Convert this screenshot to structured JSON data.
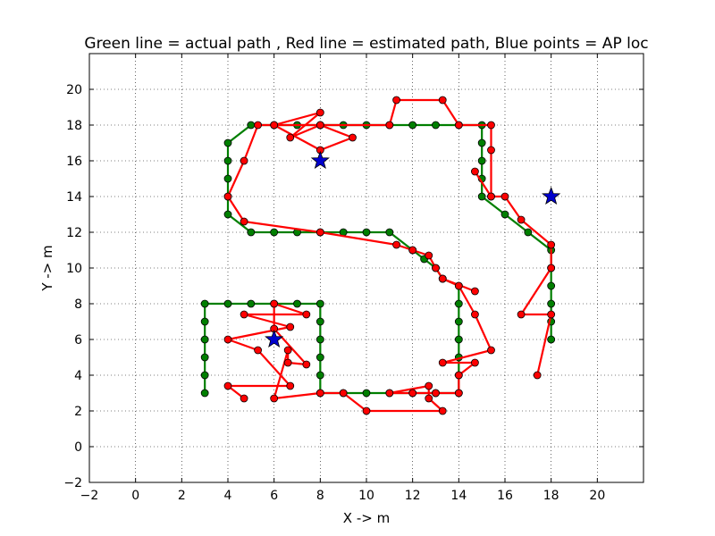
{
  "chart_data": {
    "type": "scatter",
    "title": "Green line = actual path , Red line = estimated path, Blue points = AP loc",
    "xlabel": "X -> m",
    "ylabel": "Y -> m",
    "xlim": [
      -2,
      22
    ],
    "ylim": [
      -2,
      22
    ],
    "xticks": [
      -2,
      0,
      2,
      4,
      6,
      8,
      10,
      12,
      14,
      16,
      18,
      20
    ],
    "yticks": [
      -2,
      0,
      2,
      4,
      6,
      8,
      10,
      12,
      14,
      16,
      18,
      20
    ],
    "grid": true,
    "colors": {
      "actual": "#007f00",
      "estimated": "#ff0000",
      "ap": "#0000cc",
      "marker_edge": "#000000"
    },
    "series": [
      {
        "kind": "line-markers",
        "role": "actual",
        "points": [
          [
            3,
            3
          ],
          [
            3,
            4
          ],
          [
            3,
            5
          ],
          [
            3,
            6
          ],
          [
            3,
            7
          ],
          [
            3,
            8
          ],
          [
            4,
            8
          ],
          [
            5,
            8
          ],
          [
            6,
            8
          ],
          [
            7,
            8
          ],
          [
            8,
            8
          ],
          [
            8,
            7
          ],
          [
            8,
            6
          ],
          [
            8,
            5
          ],
          [
            8,
            4
          ],
          [
            8,
            3
          ],
          [
            9,
            3
          ],
          [
            10,
            3
          ],
          [
            11,
            3
          ],
          [
            12,
            3
          ],
          [
            13,
            3
          ],
          [
            14,
            3
          ],
          [
            14,
            4
          ],
          [
            14,
            5
          ],
          [
            14,
            6
          ],
          [
            14,
            7
          ],
          [
            14,
            8
          ],
          [
            14,
            9
          ],
          [
            13.3,
            9.4
          ],
          [
            13,
            10
          ],
          [
            12.5,
            10.5
          ],
          [
            12,
            11
          ],
          [
            11,
            12
          ],
          [
            10,
            12
          ],
          [
            9,
            12
          ],
          [
            8,
            12
          ],
          [
            7,
            12
          ],
          [
            6,
            12
          ],
          [
            5,
            12
          ],
          [
            4,
            13
          ],
          [
            4,
            14
          ],
          [
            4,
            15
          ],
          [
            4,
            16
          ],
          [
            4,
            17
          ],
          [
            5,
            18
          ],
          [
            6,
            18
          ],
          [
            7,
            18
          ],
          [
            8,
            18
          ],
          [
            9,
            18
          ],
          [
            10,
            18
          ],
          [
            11,
            18
          ],
          [
            12,
            18
          ],
          [
            13,
            18
          ],
          [
            14,
            18
          ],
          [
            15,
            18
          ],
          [
            15,
            17
          ],
          [
            15,
            16
          ],
          [
            15,
            15
          ],
          [
            15,
            14
          ],
          [
            16,
            13
          ],
          [
            17,
            12
          ],
          [
            18,
            11
          ],
          [
            18,
            10
          ],
          [
            18,
            9
          ],
          [
            18,
            8
          ],
          [
            18,
            7
          ],
          [
            18,
            6
          ]
        ]
      },
      {
        "kind": "line-markers",
        "role": "estimated",
        "points": [
          [
            4.7,
            2.7
          ],
          [
            4,
            3.4
          ],
          [
            6.7,
            3.4
          ],
          [
            5.3,
            5.4
          ],
          [
            4,
            6
          ],
          [
            6.7,
            6.7
          ],
          [
            4.7,
            7.4
          ],
          [
            7.4,
            7.4
          ],
          [
            6,
            8
          ],
          [
            6,
            6.6
          ],
          [
            7.4,
            4.6
          ],
          [
            6.6,
            4.7
          ],
          [
            6.6,
            5.4
          ],
          [
            6,
            2.7
          ],
          [
            8,
            3
          ],
          [
            9,
            3
          ],
          [
            10,
            2
          ],
          [
            13.3,
            2
          ],
          [
            12.7,
            2.7
          ],
          [
            12.7,
            3.4
          ],
          [
            11,
            3
          ],
          [
            12,
            3
          ],
          [
            13,
            3
          ],
          [
            14,
            3
          ],
          [
            14,
            4
          ],
          [
            14.7,
            4.7
          ],
          [
            13.3,
            4.7
          ],
          [
            15.4,
            5.4
          ],
          [
            14.7,
            7.4
          ],
          [
            14,
            9
          ],
          [
            13.3,
            9.4
          ],
          [
            14.7,
            8.7
          ],
          [
            13.3,
            9.4
          ],
          [
            13,
            10
          ],
          [
            12.7,
            10.7
          ],
          [
            12,
            11
          ],
          [
            11.3,
            11.3
          ],
          [
            8,
            12
          ],
          [
            4.7,
            12.6
          ],
          [
            4,
            14
          ],
          [
            4.7,
            16
          ],
          [
            5.3,
            18
          ],
          [
            6,
            18
          ],
          [
            8,
            18.7
          ],
          [
            6.7,
            17.3
          ],
          [
            8,
            18
          ],
          [
            9.4,
            17.3
          ],
          [
            8,
            16.6
          ],
          [
            6,
            18
          ],
          [
            8,
            18
          ],
          [
            11,
            18
          ],
          [
            11.3,
            19.4
          ],
          [
            13.3,
            19.4
          ],
          [
            14,
            18
          ],
          [
            15.4,
            18
          ],
          [
            15.4,
            16.6
          ],
          [
            15.4,
            14
          ],
          [
            14.7,
            15.4
          ],
          [
            15.4,
            14
          ],
          [
            16,
            14
          ],
          [
            16.7,
            12.7
          ],
          [
            18,
            11.3
          ],
          [
            18,
            10
          ],
          [
            16.7,
            7.4
          ],
          [
            18,
            7.4
          ],
          [
            17.4,
            4
          ]
        ]
      }
    ],
    "ap_points": [
      [
        8,
        16
      ],
      [
        6,
        6
      ],
      [
        18,
        14
      ]
    ]
  }
}
